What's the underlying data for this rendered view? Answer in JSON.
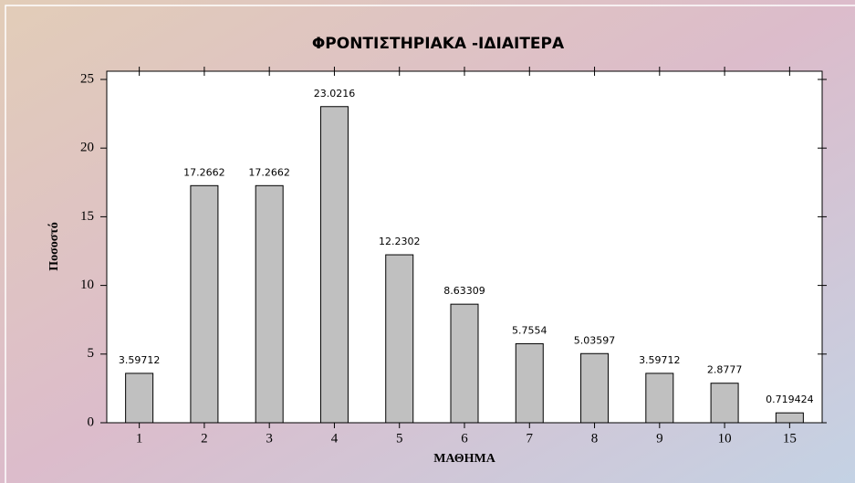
{
  "chart_data": {
    "type": "bar",
    "title": "ΦΡΟΝΤΙΣΤΗΡΙΑΚΑ -ΙΔΙΑΙΤΕΡΑ",
    "x_label": "ΜΑΘΗΜΑ",
    "y_label": "Ποσοστό",
    "categories": [
      "1",
      "2",
      "3",
      "4",
      "5",
      "6",
      "7",
      "8",
      "9",
      "10",
      "15"
    ],
    "values": [
      3.59712,
      17.2662,
      17.2662,
      23.0216,
      12.2302,
      8.63309,
      5.7554,
      5.03597,
      3.59712,
      2.8777,
      0.719424
    ],
    "color": "#c0c0c0",
    "ylim": [
      0,
      25
    ],
    "yticks": [
      0,
      5,
      10,
      15,
      20,
      25
    ],
    "grid": false
  }
}
